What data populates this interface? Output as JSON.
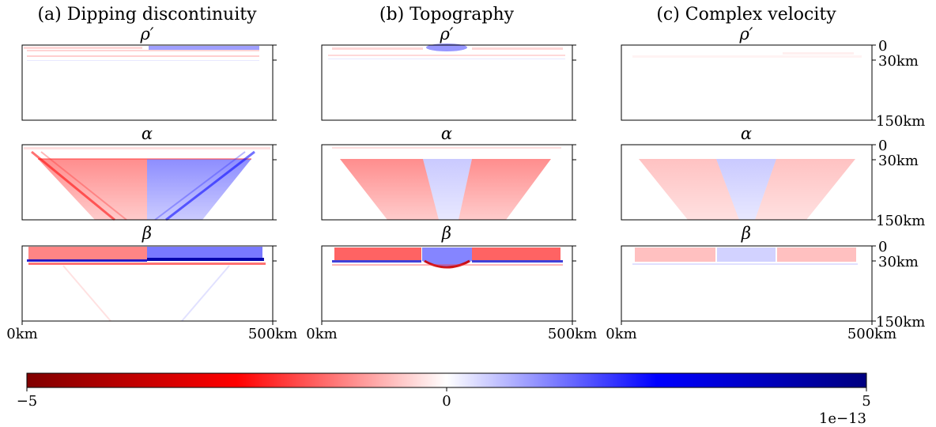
{
  "chart_data": {
    "type": "heatmap",
    "columns": [
      {
        "title": "(a) Dipping discontinuity"
      },
      {
        "title": "(b) Topography"
      },
      {
        "title": "(c) Complex velocity"
      }
    ],
    "rows": [
      {
        "label": "ρ′"
      },
      {
        "label": "α"
      },
      {
        "label": "β"
      }
    ],
    "xlim": [
      0,
      500
    ],
    "x_tick_labels": [
      "0km",
      "500km"
    ],
    "ylim": [
      150,
      0
    ],
    "y_ticks": [
      0,
      30,
      150
    ],
    "y_tick_labels": [
      "0",
      "30km",
      "150km"
    ],
    "colorbar": {
      "vmin": -5,
      "vmax": 5,
      "ticks": [
        -5,
        0,
        5
      ],
      "tick_labels": [
        "−5",
        "0",
        "5"
      ],
      "scale_label": "1e−13",
      "colormap": "seismic_r",
      "colors": [
        "#800000",
        "#ff0000",
        "#ffffff",
        "#0000ff",
        "#000080"
      ]
    }
  }
}
